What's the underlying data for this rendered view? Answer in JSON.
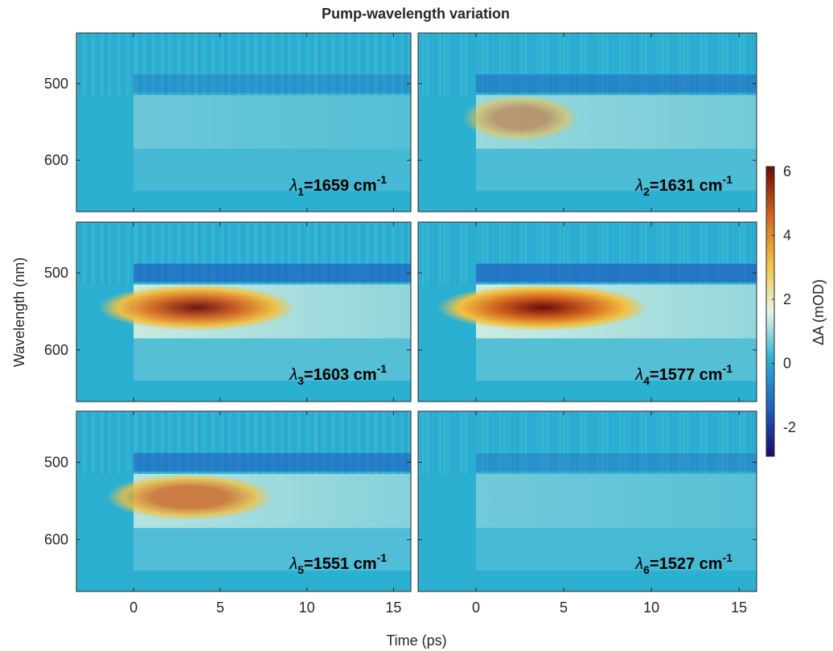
{
  "chart_data": {
    "type": "heatmap-grid",
    "title": "Pump-wavelength variation",
    "xlabel": "Time (ps)",
    "ylabel": "Wavelength (nm)",
    "xlim": [
      -3.3,
      16
    ],
    "xticks": [
      0,
      5,
      10,
      15
    ],
    "ylim": [
      434,
      667
    ],
    "y_reversed": true,
    "yticks": [
      500,
      600
    ],
    "colorbar": {
      "label": "ΔA (mOD)",
      "clim": [
        -2.9,
        6.15
      ],
      "cticks": [
        -2,
        0,
        2,
        4,
        6
      ],
      "colormap": [
        "#1b0b6b",
        "#1f5fbf",
        "#2cb0d2",
        "#e9f6e4",
        "#f2c242",
        "#d2641f",
        "#6b0a0a"
      ]
    },
    "panels": [
      {
        "symbol": "λ",
        "index": "1",
        "text": "=1659 cm",
        "exponent": "-1"
      },
      {
        "symbol": "λ",
        "index": "2",
        "text": "=1631 cm",
        "exponent": "-1"
      },
      {
        "symbol": "λ",
        "index": "3",
        "text": "=1603 cm",
        "exponent": "-1"
      },
      {
        "symbol": "λ",
        "index": "4",
        "text": "=1577 cm",
        "exponent": "-1"
      },
      {
        "symbol": "λ",
        "index": "5",
        "text": "=1551 cm",
        "exponent": "-1"
      },
      {
        "symbol": "λ",
        "index": "6",
        "text": "=1527 cm",
        "exponent": "-1"
      }
    ]
  }
}
